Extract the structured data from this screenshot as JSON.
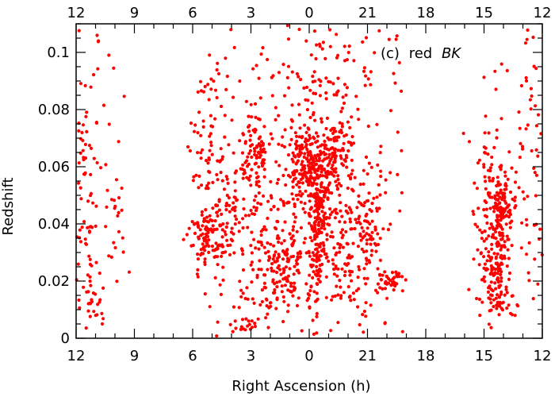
{
  "chart_data": {
    "type": "scatter",
    "title": "",
    "xlabel": "Right Ascension (h)",
    "ylabel": "Redshift",
    "annotation": {
      "prefix": "(c)",
      "word": "red",
      "italic": "BK"
    },
    "x_axis": {
      "direction": "decreasing, wraps 12 → 0 → 12 (hours)",
      "tick_labels": [
        "12",
        "9",
        "6",
        "3",
        "0",
        "21",
        "18",
        "15",
        "12"
      ]
    },
    "ylim": [
      0,
      0.11
    ],
    "y_ticks": [
      "0",
      "0.02",
      "0.04",
      "0.06",
      "0.08",
      "0.1"
    ],
    "grid": false,
    "marker_color": "#ff0000",
    "frame_color": "#000000",
    "series": [
      {
        "clusters": [
          {
            "ra": 11.6,
            "z": 0.052,
            "sra": 0.35,
            "sz": 0.025,
            "n": 70
          },
          {
            "ra": 11.0,
            "z": 0.012,
            "sra": 0.3,
            "sz": 0.005,
            "n": 18
          },
          {
            "ra": 10.0,
            "z": 0.045,
            "sra": 0.4,
            "sz": 0.012,
            "n": 22
          },
          {
            "ra": 5.2,
            "z": 0.037,
            "sra": 0.45,
            "sz": 0.006,
            "n": 90
          },
          {
            "ra": 5.0,
            "z": 0.065,
            "sra": 0.5,
            "sz": 0.018,
            "n": 60
          },
          {
            "ra": 4.0,
            "z": 0.045,
            "sra": 0.8,
            "sz": 0.015,
            "n": 70
          },
          {
            "ra": 2.8,
            "z": 0.066,
            "sra": 0.4,
            "sz": 0.006,
            "n": 70
          },
          {
            "ra": 2.5,
            "z": 0.04,
            "sra": 1.0,
            "sz": 0.02,
            "n": 70
          },
          {
            "ra": 1.2,
            "z": 0.03,
            "sra": 0.6,
            "sz": 0.005,
            "n": 70
          },
          {
            "ra": 1.2,
            "z": 0.019,
            "sra": 0.4,
            "sz": 0.003,
            "n": 25
          },
          {
            "ra": 2.2,
            "z": 0.018,
            "sra": 1.2,
            "sz": 0.006,
            "n": 40
          },
          {
            "ra": 0.2,
            "z": 0.061,
            "sra": 0.35,
            "sz": 0.006,
            "n": 130
          },
          {
            "ra": 23.5,
            "z": 0.05,
            "sra": 0.35,
            "sz": 0.008,
            "n": 110
          },
          {
            "ra": 23.6,
            "z": 0.03,
            "sra": 0.2,
            "sz": 0.012,
            "n": 90
          },
          {
            "ra": 0.5,
            "z": 0.04,
            "sra": 0.9,
            "sz": 0.025,
            "n": 110
          },
          {
            "ra": 22.8,
            "z": 0.06,
            "sra": 0.4,
            "sz": 0.006,
            "n": 60
          },
          {
            "ra": 22.5,
            "z": 0.066,
            "sra": 0.4,
            "sz": 0.006,
            "n": 35
          },
          {
            "ra": 22.0,
            "z": 0.045,
            "sra": 0.8,
            "sz": 0.02,
            "n": 90
          },
          {
            "ra": 21.0,
            "z": 0.04,
            "sra": 0.45,
            "sz": 0.01,
            "n": 60
          },
          {
            "ra": 19.8,
            "z": 0.02,
            "sra": 0.4,
            "sz": 0.002,
            "n": 40
          },
          {
            "ra": 22.2,
            "z": 0.025,
            "sra": 0.7,
            "sz": 0.008,
            "n": 40
          },
          {
            "ra": 23.5,
            "z": 0.085,
            "sra": 1.5,
            "sz": 0.014,
            "n": 90
          },
          {
            "ra": 3.2,
            "z": 0.005,
            "sra": 0.4,
            "sz": 0.0015,
            "n": 14
          },
          {
            "ra": 14.0,
            "z": 0.046,
            "sra": 0.35,
            "sz": 0.007,
            "n": 80
          },
          {
            "ra": 14.2,
            "z": 0.038,
            "sra": 0.25,
            "sz": 0.007,
            "n": 60
          },
          {
            "ra": 14.7,
            "z": 0.04,
            "sra": 0.5,
            "sz": 0.02,
            "n": 120
          },
          {
            "ra": 14.5,
            "z": 0.023,
            "sra": 0.4,
            "sz": 0.006,
            "n": 45
          },
          {
            "ra": 14.2,
            "z": 0.013,
            "sra": 0.4,
            "sz": 0.003,
            "n": 30
          },
          {
            "ra": 12.5,
            "z": 0.06,
            "sra": 0.4,
            "sz": 0.03,
            "n": 45
          }
        ],
        "background": {
          "ra_ranges": [
            [
              1.0,
              6.0
            ],
            [
              19.0,
              24.0
            ]
          ],
          "z_range": [
            0.002,
            0.108
          ],
          "n": 160
        },
        "sparse_edges": {
          "ra_ranges": [
            [
              9.5,
              12.0
            ],
            [
              12.0,
              15.0
            ]
          ],
          "z_range": [
            0.005,
            0.108
          ],
          "n": 45
        }
      }
    ]
  }
}
